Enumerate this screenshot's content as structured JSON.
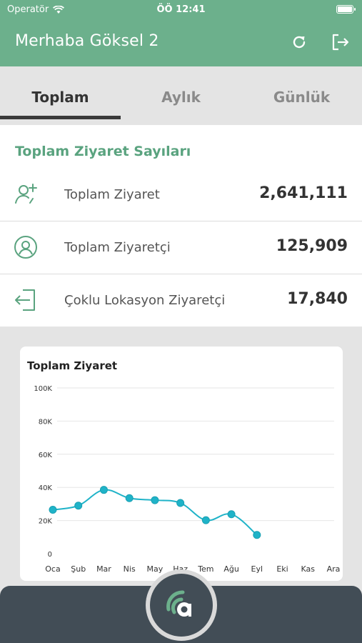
{
  "status_bar": {
    "carrier": "Operatör",
    "time": "ÖÖ 12:41"
  },
  "header": {
    "title": "Merhaba Göksel 2"
  },
  "tabs": [
    {
      "label": "Toplam",
      "active": true
    },
    {
      "label": "Aylık",
      "active": false
    },
    {
      "label": "Günlük",
      "active": false
    }
  ],
  "stats": {
    "title": "Toplam Ziyaret Sayıları",
    "items": [
      {
        "label": "Toplam Ziyaret",
        "value": "2,641,111",
        "icon": "add-user-icon"
      },
      {
        "label": "Toplam Ziyaretçi",
        "value": "125,909",
        "icon": "user-circle-icon"
      },
      {
        "label": "Çoklu Lokasyon Ziyaretçi",
        "value": "17,840",
        "icon": "login-icon"
      }
    ]
  },
  "colors": {
    "accent": "#6cb08c",
    "series": "#1fb3c8",
    "bottom_bar": "#424d56"
  },
  "chart_data": {
    "type": "line",
    "title": "Toplam Ziyaret",
    "categories": [
      "Oca",
      "Şub",
      "Mar",
      "Nis",
      "May",
      "Haz",
      "Tem",
      "Ağu",
      "Eyl",
      "Eki",
      "Kas",
      "Ara"
    ],
    "values": [
      26500,
      29000,
      38500,
      33500,
      32300,
      30600,
      20200,
      23800,
      11300,
      null,
      null,
      null
    ],
    "ylim": [
      0,
      100000
    ],
    "yticks": [
      "0",
      "20K",
      "40K",
      "60K",
      "80K",
      "100K"
    ],
    "grid": true
  }
}
